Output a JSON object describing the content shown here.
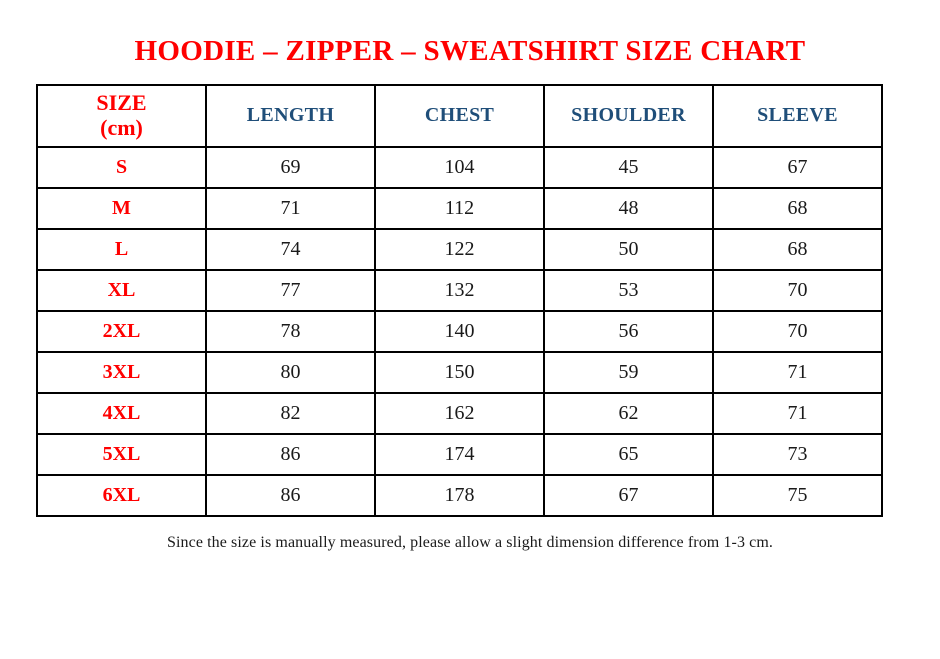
{
  "page": {
    "top_dot": ".",
    "title": "HOODIE – ZIPPER – SWEATSHIRT SIZE CHART",
    "note": "Since the size is manually measured, please allow a slight dimension difference from 1-3 cm."
  },
  "colors": {
    "title_red": "#ff0000",
    "header_blue": "#1f4e79",
    "size_label_red": "#ff0000",
    "body_text": "#1a1a1a",
    "table_border": "#000000",
    "background": "#ffffff"
  },
  "table": {
    "columns": [
      {
        "key": "size",
        "label": "SIZE\n(cm)",
        "style": "red"
      },
      {
        "key": "length",
        "label": "LENGTH",
        "style": "blue"
      },
      {
        "key": "chest",
        "label": "CHEST",
        "style": "blue"
      },
      {
        "key": "shoulder",
        "label": "SHOULDER",
        "style": "blue"
      },
      {
        "key": "sleeve",
        "label": "SLEEVE",
        "style": "blue"
      }
    ],
    "rows": [
      {
        "size": "S",
        "length": "69",
        "chest": "104",
        "shoulder": "45",
        "sleeve": "67"
      },
      {
        "size": "M",
        "length": "71",
        "chest": "112",
        "shoulder": "48",
        "sleeve": "68"
      },
      {
        "size": "L",
        "length": "74",
        "chest": "122",
        "shoulder": "50",
        "sleeve": "68"
      },
      {
        "size": "XL",
        "length": "77",
        "chest": "132",
        "shoulder": "53",
        "sleeve": "70"
      },
      {
        "size": "2XL",
        "length": "78",
        "chest": "140",
        "shoulder": "56",
        "sleeve": "70"
      },
      {
        "size": "3XL",
        "length": "80",
        "chest": "150",
        "shoulder": "59",
        "sleeve": "71"
      },
      {
        "size": "4XL",
        "length": "82",
        "chest": "162",
        "shoulder": "62",
        "sleeve": "71"
      },
      {
        "size": "5XL",
        "length": "86",
        "chest": "174",
        "shoulder": "65",
        "sleeve": "73"
      },
      {
        "size": "6XL",
        "length": "86",
        "chest": "178",
        "shoulder": "67",
        "sleeve": "75"
      }
    ]
  }
}
